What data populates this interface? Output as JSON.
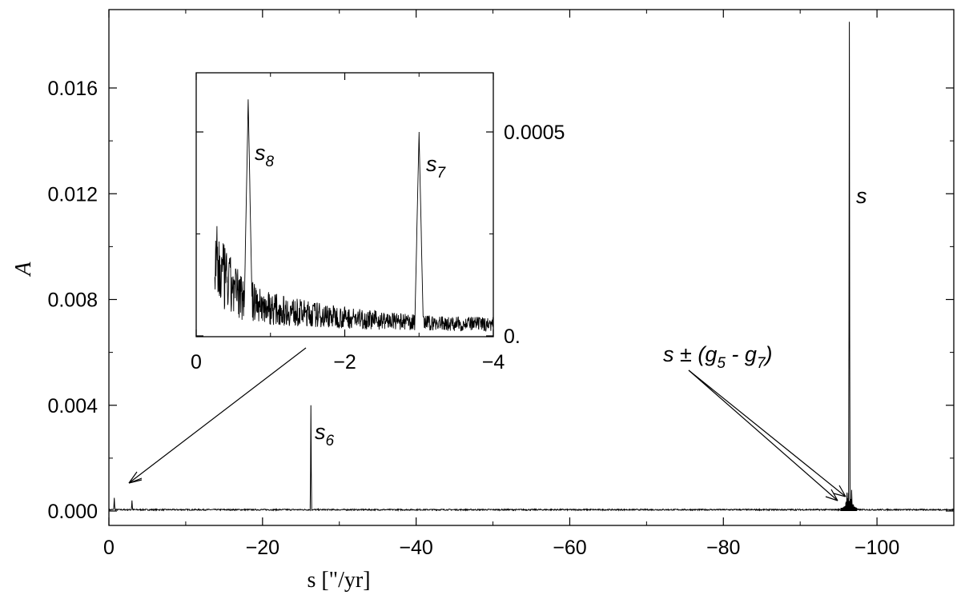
{
  "chart_data": [
    {
      "type": "line",
      "panel": "main",
      "xlabel": "s [\"/yr]",
      "ylabel": "A",
      "xlim": [
        0,
        -110
      ],
      "ylim": [
        0.0,
        0.0185
      ],
      "x_ticks": [
        0,
        -20,
        -40,
        -60,
        -80,
        -100
      ],
      "x_tick_labels": [
        "0",
        "−20",
        "−40",
        "−60",
        "−80",
        "−100"
      ],
      "y_ticks": [
        0.0,
        0.004,
        0.008,
        0.012,
        0.016
      ],
      "y_tick_labels": [
        "0.000",
        "0.004",
        "0.008",
        "0.012",
        "0.016"
      ],
      "baseline": 5e-05,
      "peaks": [
        {
          "x": -0.7,
          "y": 0.0005
        },
        {
          "x": -3.0,
          "y": 0.0004
        },
        {
          "x": -26.3,
          "y": 0.004
        },
        {
          "x": -96.1,
          "y": 0.0007
        },
        {
          "x": -96.4,
          "y": 0.0185
        },
        {
          "x": -96.7,
          "y": 0.0008
        }
      ],
      "annotations": [
        {
          "label": "s",
          "sub": "6",
          "x": -26.3
        },
        {
          "label": "s",
          "sub": "",
          "x": -96.4
        },
        {
          "label": "s ± (g",
          "sub": "5",
          "label2": " - g",
          "sub2": "7",
          "label3": ")",
          "x": -95.9
        }
      ],
      "grid": false
    },
    {
      "type": "line",
      "panel": "inset",
      "xlim": [
        0,
        -4
      ],
      "ylim": [
        0.0,
        0.0007
      ],
      "x_ticks": [
        0,
        -2,
        -4
      ],
      "x_tick_labels": [
        "0",
        "−2",
        "−4"
      ],
      "y_ticks": [
        0.0,
        0.0005
      ],
      "y_tick_labels": [
        "0.",
        "0.0005"
      ],
      "peaks": [
        {
          "x": -0.7,
          "y": 0.00058
        },
        {
          "x": -3.0,
          "y": 0.0005
        }
      ],
      "annotations": [
        {
          "label": "s",
          "sub": "8",
          "x": -0.7
        },
        {
          "label": "s",
          "sub": "7",
          "x": -3.0
        }
      ],
      "grid": false
    }
  ]
}
